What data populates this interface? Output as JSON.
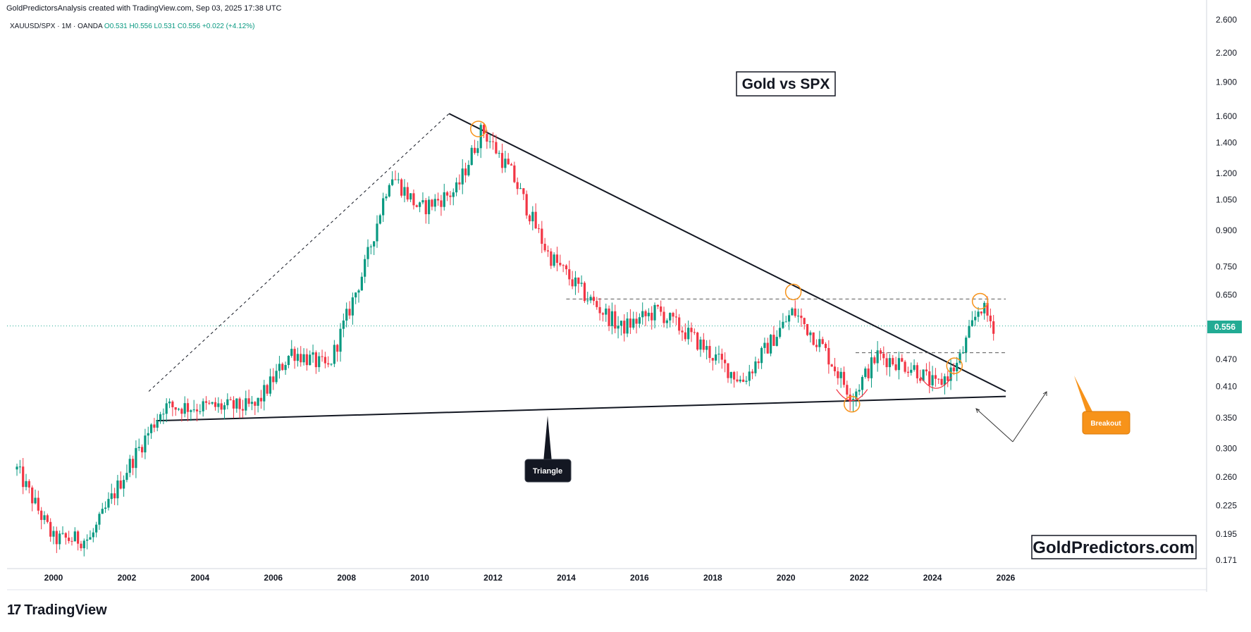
{
  "header": {
    "credit": "GoldPredictorsAnalysis created with TradingView.com, Sep 03, 2025 17:38 UTC",
    "symbol": "XAUUSD/SPX · 1M · OANDA",
    "open": "O0.531",
    "high": "H0.556",
    "low": "L0.531",
    "close": "C0.556",
    "change": "+0.022 (+4.12%)"
  },
  "annotations": {
    "title": "Gold vs SPX",
    "triangle_label": "Triangle",
    "breakout_label": "Breakout",
    "watermark": "GoldPredictors.com"
  },
  "footer": {
    "logo_text": "TradingView"
  },
  "colors": {
    "up": "#089981",
    "down": "#f23645",
    "price_label_bg": "#22ab94",
    "highlight_circle": "#f7931a",
    "breakout_bg": "#f7931a",
    "triangle_label_bg": "#131722"
  },
  "chart_data": {
    "type": "candlestick",
    "title": "Gold vs SPX",
    "symbol": "XAUUSD/SPX",
    "interval": "1M",
    "scale": "log",
    "ylim": [
      0.171,
      2.6
    ],
    "y_ticks": [
      "2.600",
      "2.200",
      "1.900",
      "1.600",
      "1.400",
      "1.200",
      "1.050",
      "0.900",
      "0.750",
      "0.650",
      "0.556",
      "0.470",
      "0.410",
      "0.350",
      "0.300",
      "0.260",
      "0.225",
      "0.195",
      "0.171"
    ],
    "x_ticks": [
      "2000",
      "2002",
      "2004",
      "2006",
      "2008",
      "2010",
      "2012",
      "2014",
      "2016",
      "2018",
      "2020",
      "2022",
      "2024",
      "2026"
    ],
    "last_price": "0.556",
    "key_points": [
      {
        "date": 1999.0,
        "value": 0.27
      },
      {
        "date": 2000.0,
        "value": 0.19
      },
      {
        "date": 2001.0,
        "value": 0.19
      },
      {
        "date": 2002.0,
        "value": 0.27
      },
      {
        "date": 2003.0,
        "value": 0.37
      },
      {
        "date": 2004.0,
        "value": 0.37
      },
      {
        "date": 2005.5,
        "value": 0.37
      },
      {
        "date": 2006.5,
        "value": 0.49
      },
      {
        "date": 2007.5,
        "value": 0.45
      },
      {
        "date": 2008.5,
        "value": 0.75
      },
      {
        "date": 2009.2,
        "value": 1.2
      },
      {
        "date": 2010.0,
        "value": 1.0
      },
      {
        "date": 2011.0,
        "value": 1.1
      },
      {
        "date": 2011.7,
        "value": 1.5
      },
      {
        "date": 2012.5,
        "value": 1.2
      },
      {
        "date": 2013.5,
        "value": 0.8
      },
      {
        "date": 2014.5,
        "value": 0.65
      },
      {
        "date": 2015.5,
        "value": 0.55
      },
      {
        "date": 2016.5,
        "value": 0.6
      },
      {
        "date": 2017.5,
        "value": 0.52
      },
      {
        "date": 2018.8,
        "value": 0.42
      },
      {
        "date": 2020.2,
        "value": 0.6
      },
      {
        "date": 2021.0,
        "value": 0.5
      },
      {
        "date": 2021.8,
        "value": 0.39
      },
      {
        "date": 2022.5,
        "value": 0.48
      },
      {
        "date": 2023.5,
        "value": 0.45
      },
      {
        "date": 2024.1,
        "value": 0.41
      },
      {
        "date": 2024.7,
        "value": 0.46
      },
      {
        "date": 2025.3,
        "value": 0.62
      },
      {
        "date": 2025.67,
        "value": 0.556
      }
    ],
    "lines": [
      {
        "name": "upper trendline",
        "from": {
          "date": 2010.8,
          "value": 1.62
        },
        "to": {
          "date": 2026.0,
          "value": 0.4
        }
      },
      {
        "name": "lower trendline",
        "from": {
          "date": 2002.8,
          "value": 0.345
        },
        "to": {
          "date": 2026.0,
          "value": 0.39
        }
      },
      {
        "name": "resistance",
        "from": {
          "date": 2014.0,
          "value": 0.637
        },
        "to": {
          "date": 2026.0,
          "value": 0.637
        }
      },
      {
        "name": "neckline",
        "from": {
          "date": 2021.9,
          "value": 0.486
        },
        "to": {
          "date": 2026.0,
          "value": 0.486
        }
      }
    ],
    "grid": false
  }
}
